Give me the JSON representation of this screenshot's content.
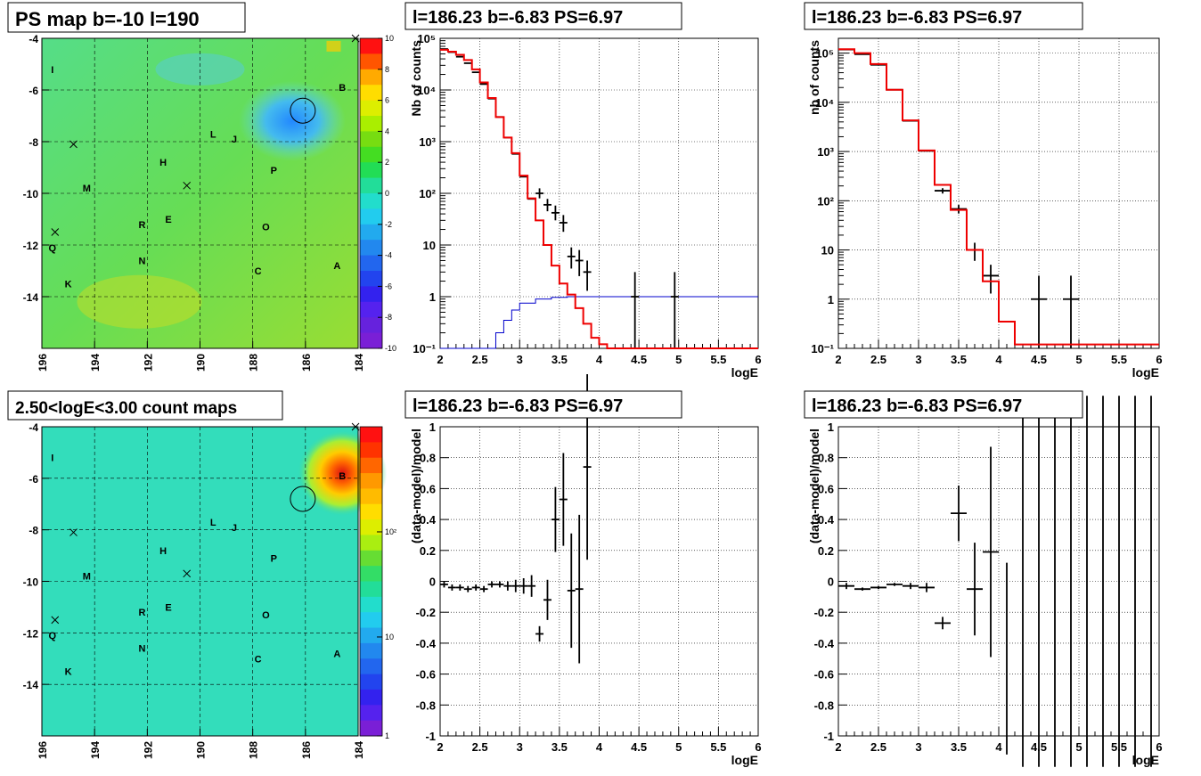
{
  "colors": {
    "data": "#000000",
    "model": "#ee0000",
    "background_model": "#0000cc",
    "frame": "#000000"
  },
  "panels": {
    "map_top": {
      "title": "PS map b=-10 l=190",
      "xticks": [
        "196",
        "194",
        "192",
        "190",
        "188",
        "186",
        "184"
      ],
      "yticks": [
        "-4",
        "-6",
        "-8",
        "-10",
        "-12",
        "-14"
      ],
      "xlim": [
        196,
        184
      ],
      "ylim": [
        -16,
        -4
      ],
      "colorbar": {
        "ticks": [
          "10",
          "8",
          "6",
          "4",
          "2",
          "0",
          "-2",
          "-4",
          "-6",
          "-8",
          "-10"
        ],
        "range": [
          -10,
          10
        ]
      },
      "sources": [
        {
          "label": "I",
          "l": 195.6,
          "b": -5.2
        },
        {
          "label": "B",
          "l": 184.6,
          "b": -5.9
        },
        {
          "label": "L",
          "l": 189.5,
          "b": -7.7
        },
        {
          "label": "J",
          "l": 188.7,
          "b": -7.9
        },
        {
          "label": "H",
          "l": 191.4,
          "b": -8.8
        },
        {
          "label": "P",
          "l": 187.2,
          "b": -9.1
        },
        {
          "label": "M",
          "l": 194.3,
          "b": -9.8
        },
        {
          "label": "E",
          "l": 191.2,
          "b": -11.0
        },
        {
          "label": "R",
          "l": 192.2,
          "b": -11.2
        },
        {
          "label": "O",
          "l": 187.5,
          "b": -11.3
        },
        {
          "label": "Q",
          "l": 195.6,
          "b": -12.1
        },
        {
          "label": "N",
          "l": 192.2,
          "b": -12.6
        },
        {
          "label": "C",
          "l": 187.8,
          "b": -13.0
        },
        {
          "label": "A",
          "l": 184.8,
          "b": -12.8
        },
        {
          "label": "K",
          "l": 195.0,
          "b": -13.5
        }
      ],
      "crosses": [
        {
          "l": 194.8,
          "b": -8.1
        },
        {
          "l": 190.5,
          "b": -9.7
        },
        {
          "l": 195.5,
          "b": -11.5
        },
        {
          "l": 184.1,
          "b": -4.0
        }
      ],
      "circle": {
        "l": 186.1,
        "b": -6.8
      }
    },
    "map_bottom": {
      "title": "2.50<logE<3.00 count maps",
      "xticks": [
        "196",
        "194",
        "192",
        "190",
        "188",
        "186",
        "184"
      ],
      "yticks": [
        "-4",
        "-6",
        "-8",
        "-10",
        "-12",
        "-14"
      ],
      "xlim": [
        196,
        184
      ],
      "ylim": [
        -16,
        -4
      ],
      "colorbar": {
        "ticks": [
          "10²",
          "10",
          "1"
        ],
        "log": true
      }
    },
    "spec_left": {
      "title": "l=186.23 b=-6.83 PS=6.97",
      "xlabel": "logE",
      "ylabel": "Nb of counts",
      "xlim": [
        2,
        6
      ],
      "ylim_log": [
        0.1,
        100000
      ],
      "xticks": [
        "2",
        "2.5",
        "3",
        "3.5",
        "4",
        "4.5",
        "5",
        "5.5",
        "6"
      ],
      "yticks": [
        "10⁻¹",
        "1",
        "10",
        "10²",
        "10³",
        "10⁴",
        "10⁵"
      ],
      "model_x": [
        2.0,
        2.1,
        2.2,
        2.3,
        2.4,
        2.5,
        2.6,
        2.7,
        2.8,
        2.9,
        3.0,
        3.1,
        3.2,
        3.3,
        3.4,
        3.5,
        3.6,
        3.7,
        3.8,
        3.9,
        4.0,
        4.1,
        4.2,
        6.0
      ],
      "model_y": [
        60000,
        55000,
        48000,
        38000,
        25000,
        14000,
        7000,
        3000,
        1200,
        600,
        220,
        80,
        30,
        10,
        4,
        1.8,
        1.1,
        0.6,
        0.3,
        0.16,
        0.12,
        0.1,
        0.1,
        0.1
      ],
      "bkg_x": [
        2.0,
        2.3,
        2.6,
        2.7,
        2.8,
        2.9,
        3.0,
        3.2,
        3.4,
        3.6,
        3.8,
        4.0,
        6.0
      ],
      "bkg_y": [
        0.1,
        0.1,
        0.1,
        0.2,
        0.35,
        0.55,
        0.75,
        0.9,
        0.97,
        1.0,
        1.0,
        1.0,
        1.0
      ],
      "data": [
        {
          "x": 2.05,
          "y": 62000,
          "dx": 0.05
        },
        {
          "x": 2.15,
          "y": 54000,
          "dx": 0.05
        },
        {
          "x": 2.25,
          "y": 44000,
          "dx": 0.05
        },
        {
          "x": 2.35,
          "y": 33000,
          "dx": 0.05
        },
        {
          "x": 2.45,
          "y": 22000,
          "dx": 0.05
        },
        {
          "x": 2.55,
          "y": 13000,
          "dx": 0.05
        },
        {
          "x": 2.65,
          "y": 6800,
          "dx": 0.05
        },
        {
          "x": 2.75,
          "y": 3000,
          "dx": 0.05
        },
        {
          "x": 2.85,
          "y": 1200,
          "dx": 0.05
        },
        {
          "x": 2.95,
          "y": 580,
          "dx": 0.05
        },
        {
          "x": 3.05,
          "y": 210,
          "dx": 0.05
        },
        {
          "x": 3.15,
          "y": 78,
          "dx": 0.05
        },
        {
          "x": 3.25,
          "y": 100,
          "dx": 0.05,
          "ylo": 80,
          "yhi": 125
        },
        {
          "x": 3.35,
          "y": 60,
          "dx": 0.05,
          "ylo": 45,
          "yhi": 78
        },
        {
          "x": 3.45,
          "y": 42,
          "dx": 0.05,
          "ylo": 30,
          "yhi": 58
        },
        {
          "x": 3.55,
          "y": 27,
          "dx": 0.05,
          "ylo": 18,
          "yhi": 38
        },
        {
          "x": 3.65,
          "y": 6,
          "dx": 0.05,
          "ylo": 3.5,
          "yhi": 9
        },
        {
          "x": 3.75,
          "y": 5,
          "dx": 0.05,
          "ylo": 2.5,
          "yhi": 8
        },
        {
          "x": 3.85,
          "y": 3,
          "dx": 0.05,
          "ylo": 1.3,
          "yhi": 5
        },
        {
          "x": 4.45,
          "y": 1,
          "dx": 0.05,
          "ylo": 0.1,
          "yhi": 3
        },
        {
          "x": 4.95,
          "y": 1,
          "dx": 0.05,
          "ylo": 0.1,
          "yhi": 3
        }
      ]
    },
    "spec_right": {
      "title": "l=186.23 b=-6.83 PS=6.97",
      "xlabel": "logE",
      "ylabel": "nb of counts",
      "xlim": [
        2,
        6
      ],
      "ylim_log": [
        0.1,
        200000
      ],
      "xticks": [
        "2",
        "2.5",
        "3",
        "3.5",
        "4",
        "4.5",
        "5",
        "5.5",
        "6"
      ],
      "yticks": [
        "10⁻¹",
        "1",
        "10",
        "10²",
        "10³",
        "10⁴",
        "10⁵"
      ],
      "model_x": [
        2.0,
        2.2,
        2.4,
        2.6,
        2.8,
        3.0,
        3.2,
        3.4,
        3.6,
        3.8,
        4.0,
        4.2,
        6.0
      ],
      "model_y": [
        120000,
        100000,
        60000,
        18000,
        4300,
        1050,
        210,
        65,
        10,
        2.3,
        0.35,
        0.12,
        0.1
      ],
      "data": [
        {
          "x": 2.1,
          "y": 118000,
          "dx": 0.1
        },
        {
          "x": 2.3,
          "y": 95000,
          "dx": 0.1
        },
        {
          "x": 2.5,
          "y": 58000,
          "dx": 0.1
        },
        {
          "x": 2.7,
          "y": 18000,
          "dx": 0.1
        },
        {
          "x": 2.9,
          "y": 4200,
          "dx": 0.1
        },
        {
          "x": 3.1,
          "y": 1030,
          "dx": 0.1
        },
        {
          "x": 3.3,
          "y": 160,
          "dx": 0.1,
          "ylo": 140,
          "yhi": 180
        },
        {
          "x": 3.5,
          "y": 68,
          "dx": 0.1,
          "ylo": 55,
          "yhi": 82
        },
        {
          "x": 3.7,
          "y": 10,
          "dx": 0.1,
          "ylo": 6,
          "yhi": 14
        },
        {
          "x": 3.9,
          "y": 3,
          "dx": 0.1,
          "ylo": 1.3,
          "yhi": 5
        },
        {
          "x": 4.5,
          "y": 1,
          "dx": 0.1,
          "ylo": 0.1,
          "yhi": 3
        },
        {
          "x": 4.9,
          "y": 1,
          "dx": 0.1,
          "ylo": 0.1,
          "yhi": 3
        }
      ]
    },
    "res_left": {
      "title": "l=186.23 b=-6.83 PS=6.97",
      "xlabel": "logE",
      "ylabel": "(data-model)/model",
      "xlim": [
        2,
        6
      ],
      "ylim": [
        -1,
        1
      ],
      "xticks": [
        "2",
        "2.5",
        "3",
        "3.5",
        "4",
        "4.5",
        "5",
        "5.5",
        "6"
      ],
      "yticks": [
        "-1",
        "-0.8",
        "-0.6",
        "-0.4",
        "-0.2",
        "0",
        "0.2",
        "0.4",
        "0.6",
        "0.8",
        "1"
      ],
      "data": [
        {
          "x": 2.05,
          "y": -0.02,
          "dx": 0.05,
          "ey": 0.02
        },
        {
          "x": 2.15,
          "y": -0.04,
          "dx": 0.05,
          "ey": 0.02
        },
        {
          "x": 2.25,
          "y": -0.04,
          "dx": 0.05,
          "ey": 0.02
        },
        {
          "x": 2.35,
          "y": -0.05,
          "dx": 0.05,
          "ey": 0.02
        },
        {
          "x": 2.45,
          "y": -0.04,
          "dx": 0.05,
          "ey": 0.02
        },
        {
          "x": 2.55,
          "y": -0.05,
          "dx": 0.05,
          "ey": 0.02
        },
        {
          "x": 2.65,
          "y": -0.02,
          "dx": 0.05,
          "ey": 0.02
        },
        {
          "x": 2.75,
          "y": -0.02,
          "dx": 0.05,
          "ey": 0.02
        },
        {
          "x": 2.85,
          "y": -0.03,
          "dx": 0.05,
          "ey": 0.03
        },
        {
          "x": 2.95,
          "y": -0.03,
          "dx": 0.05,
          "ey": 0.04
        },
        {
          "x": 3.05,
          "y": -0.03,
          "dx": 0.05,
          "ey": 0.05
        },
        {
          "x": 3.15,
          "y": -0.03,
          "dx": 0.05,
          "ey": 0.07
        },
        {
          "x": 3.25,
          "y": -0.34,
          "dx": 0.05,
          "ey": 0.05
        },
        {
          "x": 3.35,
          "y": -0.12,
          "dx": 0.05,
          "ey": 0.13
        },
        {
          "x": 3.45,
          "y": 0.4,
          "dx": 0.05,
          "ey": 0.21
        },
        {
          "x": 3.55,
          "y": 0.53,
          "dx": 0.05,
          "ey": 0.3
        },
        {
          "x": 3.65,
          "y": -0.06,
          "dx": 0.05,
          "ey": 0.37
        },
        {
          "x": 3.75,
          "y": -0.05,
          "dx": 0.05,
          "ey": 0.48
        },
        {
          "x": 3.85,
          "y": 0.74,
          "dx": 0.05,
          "ey": 0.6
        }
      ]
    },
    "res_right": {
      "title": "l=186.23 b=-6.83 PS=6.97",
      "xlabel": "logE",
      "ylabel": "(data-model)/model",
      "xlim": [
        2,
        6
      ],
      "ylim": [
        -1,
        1
      ],
      "xticks": [
        "2",
        "2.5",
        "3",
        "3.5",
        "4",
        "4.5",
        "5",
        "5.5",
        "6"
      ],
      "yticks": [
        "-1",
        "-0.8",
        "-0.6",
        "-0.4",
        "-0.2",
        "0",
        "0.2",
        "0.4",
        "0.6",
        "0.8",
        "1"
      ],
      "data": [
        {
          "x": 2.1,
          "y": -0.03,
          "dx": 0.1,
          "ey": 0.02
        },
        {
          "x": 2.3,
          "y": -0.05,
          "dx": 0.1,
          "ey": 0.01
        },
        {
          "x": 2.5,
          "y": -0.04,
          "dx": 0.1,
          "ey": 0.01
        },
        {
          "x": 2.7,
          "y": -0.02,
          "dx": 0.1,
          "ey": 0.01
        },
        {
          "x": 2.9,
          "y": -0.03,
          "dx": 0.1,
          "ey": 0.02
        },
        {
          "x": 3.1,
          "y": -0.04,
          "dx": 0.1,
          "ey": 0.03
        },
        {
          "x": 3.3,
          "y": -0.27,
          "dx": 0.1,
          "ey": 0.04
        },
        {
          "x": 3.5,
          "y": 0.44,
          "dx": 0.1,
          "ey": 0.18
        },
        {
          "x": 3.7,
          "y": -0.05,
          "dx": 0.1,
          "ey": 0.3
        },
        {
          "x": 3.9,
          "y": 0.19,
          "dx": 0.1,
          "ey": 0.68
        },
        {
          "x": 4.1,
          "y": -0.5,
          "dx": 0.0,
          "ey": 0.62
        },
        {
          "x": 4.3,
          "y": 0,
          "dx": 0.0,
          "ey": 1.2
        },
        {
          "x": 4.5,
          "y": 0,
          "dx": 0.0,
          "ey": 1.2
        },
        {
          "x": 4.7,
          "y": 0,
          "dx": 0.0,
          "ey": 1.2
        },
        {
          "x": 4.9,
          "y": 0,
          "dx": 0.0,
          "ey": 1.2
        },
        {
          "x": 5.1,
          "y": 0,
          "dx": 0.0,
          "ey": 1.2
        },
        {
          "x": 5.3,
          "y": 0,
          "dx": 0.0,
          "ey": 1.2
        },
        {
          "x": 5.5,
          "y": 0,
          "dx": 0.0,
          "ey": 1.2
        },
        {
          "x": 5.7,
          "y": 0,
          "dx": 0.0,
          "ey": 1.2
        },
        {
          "x": 5.9,
          "y": 0,
          "dx": 0.0,
          "ey": 1.2
        }
      ]
    }
  }
}
